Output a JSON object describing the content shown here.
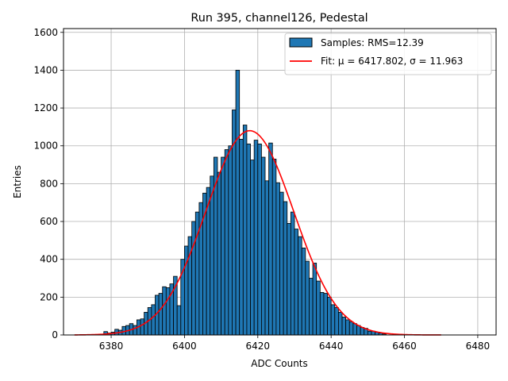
{
  "chart_data": {
    "type": "bar",
    "title": "Run 395, channel126, Pedestal",
    "xlabel": "ADC Counts",
    "ylabel": "Entries",
    "xlim": [
      6367,
      6485
    ],
    "ylim": [
      0,
      1620
    ],
    "xticks": [
      6380,
      6400,
      6420,
      6440,
      6460,
      6480
    ],
    "yticks": [
      0,
      200,
      400,
      600,
      800,
      1000,
      1200,
      1400,
      1600
    ],
    "grid": true,
    "legend_position": "top-right",
    "bin_width": 1,
    "bins": [
      6370,
      6371,
      6372,
      6373,
      6374,
      6375,
      6376,
      6377,
      6378,
      6379,
      6380,
      6381,
      6382,
      6383,
      6384,
      6385,
      6386,
      6387,
      6388,
      6389,
      6390,
      6391,
      6392,
      6393,
      6394,
      6395,
      6396,
      6397,
      6398,
      6399,
      6400,
      6401,
      6402,
      6403,
      6404,
      6405,
      6406,
      6407,
      6408,
      6409,
      6410,
      6411,
      6412,
      6413,
      6414,
      6415,
      6416,
      6417,
      6418,
      6419,
      6420,
      6421,
      6422,
      6423,
      6424,
      6425,
      6426,
      6427,
      6428,
      6429,
      6430,
      6431,
      6432,
      6433,
      6434,
      6435,
      6436,
      6437,
      6438,
      6439,
      6440,
      6441,
      6442,
      6443,
      6444,
      6445,
      6446,
      6447,
      6448,
      6449,
      6450,
      6451,
      6452,
      6453,
      6454,
      6455,
      6456,
      6457,
      6458,
      6459,
      6460,
      6461,
      6462,
      6463,
      6464,
      6465,
      6466,
      6467,
      6468,
      6469
    ],
    "counts": [
      0,
      0,
      0,
      0,
      0,
      0,
      0,
      2,
      18,
      10,
      15,
      30,
      25,
      45,
      50,
      60,
      50,
      80,
      85,
      120,
      145,
      160,
      210,
      220,
      255,
      250,
      270,
      310,
      155,
      400,
      470,
      520,
      600,
      650,
      700,
      750,
      780,
      840,
      940,
      860,
      940,
      980,
      1000,
      1190,
      1400,
      1035,
      1110,
      1010,
      925,
      1030,
      1010,
      940,
      815,
      1015,
      930,
      805,
      755,
      705,
      590,
      650,
      560,
      520,
      460,
      390,
      300,
      380,
      285,
      225,
      220,
      200,
      160,
      145,
      120,
      95,
      80,
      70,
      60,
      50,
      40,
      35,
      20,
      20,
      15,
      10,
      5,
      0,
      0,
      0,
      0,
      0,
      0,
      0,
      0,
      0,
      0,
      0,
      0,
      0,
      0,
      0
    ],
    "series": [
      {
        "name": "Samples: RMS=12.39",
        "kind": "histogram",
        "color": "#1f77b4",
        "edge_color": "#000000"
      },
      {
        "name": "Fit: μ = 6417.802, σ = 11.963",
        "kind": "gaussian",
        "color": "#ff0000",
        "mu": 6417.802,
        "sigma": 11.963,
        "amplitude": 1080,
        "x_range": [
          6370,
          6470
        ]
      }
    ]
  }
}
